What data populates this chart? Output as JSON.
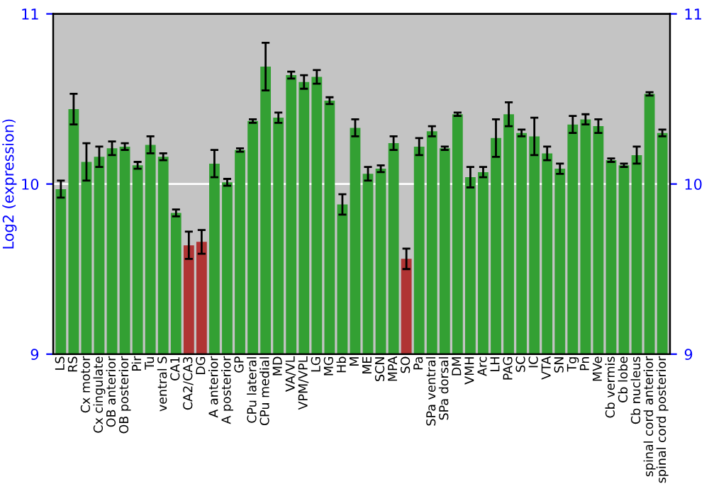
{
  "chart_data": {
    "type": "bar",
    "ylabel": "Log2 (expression)",
    "categories": [
      "LS",
      "RS",
      "Cx motor",
      "Cx cingulate",
      "OB anterior",
      "OB posterior",
      "Pir",
      "Tu",
      "ventral S",
      "CA1",
      "CA2/CA3",
      "DG",
      "A anterior",
      "A posterior",
      "GP",
      "CPu lateral",
      "CPu medial",
      "MD",
      "VA/VL",
      "VPM/VPL",
      "LG",
      "MG",
      "Hb",
      "M",
      "ME",
      "SCN",
      "MPA",
      "SO",
      "Pa",
      "SPa ventral",
      "SPa dorsal",
      "DM",
      "VMH",
      "Arc",
      "LH",
      "PAG",
      "SC",
      "IC",
      "VTA",
      "SN",
      "Tg",
      "Pn",
      "MVe",
      "Cb vermis",
      "Cb lobe",
      "Cb nucleus",
      "spinal cord anterior",
      "spinal cord posterior"
    ],
    "values": [
      9.97,
      10.44,
      10.13,
      10.16,
      10.21,
      10.22,
      10.11,
      10.23,
      10.16,
      9.83,
      9.64,
      9.66,
      10.12,
      10.01,
      10.2,
      10.37,
      10.69,
      10.39,
      10.64,
      10.6,
      10.63,
      10.49,
      9.88,
      10.33,
      10.06,
      10.09,
      10.24,
      9.56,
      10.22,
      10.31,
      10.21,
      10.41,
      10.04,
      10.07,
      10.27,
      10.41,
      10.3,
      10.28,
      10.18,
      10.09,
      10.35,
      10.38,
      10.34,
      10.14,
      10.11,
      10.17,
      10.53,
      10.3
    ],
    "errors": [
      0.05,
      0.09,
      0.11,
      0.06,
      0.04,
      0.02,
      0.02,
      0.05,
      0.02,
      0.02,
      0.08,
      0.07,
      0.08,
      0.02,
      0.01,
      0.01,
      0.14,
      0.03,
      0.02,
      0.04,
      0.04,
      0.02,
      0.06,
      0.05,
      0.04,
      0.02,
      0.04,
      0.06,
      0.05,
      0.03,
      0.01,
      0.01,
      0.06,
      0.03,
      0.11,
      0.07,
      0.02,
      0.11,
      0.04,
      0.03,
      0.05,
      0.03,
      0.04,
      0.01,
      0.01,
      0.05,
      0.01,
      0.02
    ],
    "colors": [
      "#33a033",
      "#33a033",
      "#33a033",
      "#33a033",
      "#33a033",
      "#33a033",
      "#33a033",
      "#33a033",
      "#33a033",
      "#33a033",
      "#b03434",
      "#b03434",
      "#33a033",
      "#33a033",
      "#33a033",
      "#33a033",
      "#33a033",
      "#33a033",
      "#33a033",
      "#33a033",
      "#33a033",
      "#33a033",
      "#33a033",
      "#33a033",
      "#33a033",
      "#33a033",
      "#33a033",
      "#b03434",
      "#33a033",
      "#33a033",
      "#33a033",
      "#33a033",
      "#33a033",
      "#33a033",
      "#33a033",
      "#33a033",
      "#33a033",
      "#33a033",
      "#33a033",
      "#33a033",
      "#33a033",
      "#33a033",
      "#33a033",
      "#33a033",
      "#33a033",
      "#33a033",
      "#33a033",
      "#33a033"
    ],
    "ylim": [
      9,
      11
    ],
    "yticks": [
      9,
      10,
      11
    ],
    "y2lim": [
      9,
      11
    ],
    "y2ticks": [
      9,
      10,
      11
    ],
    "ref_lines": [
      {
        "axis": "y",
        "value": 10,
        "color": "#ffffff"
      }
    ],
    "grid": false,
    "legend": false
  }
}
